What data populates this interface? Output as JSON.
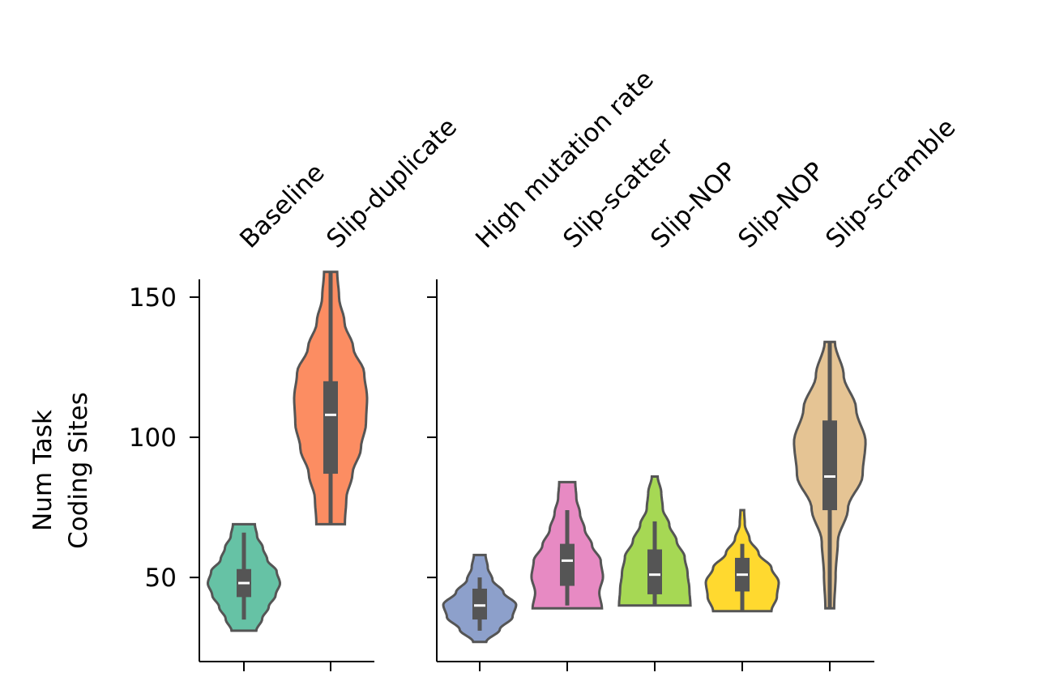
{
  "chart_data": {
    "type": "violin",
    "ylabel_lines": [
      "Num Task",
      "Coding Sites"
    ],
    "ylim": [
      20,
      165
    ],
    "yticks": [
      50,
      100,
      150
    ],
    "box_color": "#555555",
    "median_color": "#ffffff",
    "panels": [
      {
        "categories": [
          {
            "name": "Baseline",
            "color": "#66c2a5",
            "min": 31,
            "max": 69,
            "q1": 43,
            "median": 48,
            "q3": 53,
            "whisker_low": 35,
            "whisker_high": 66,
            "density": [
              0.34,
              0.5,
              0.68,
              0.87,
              0.99,
              0.9,
              0.64,
              0.52,
              0.36,
              0.3
            ]
          },
          {
            "name": "Slip-duplicate",
            "color": "#fc8d62",
            "min": 69,
            "max": 159,
            "q1": 87,
            "median": 108,
            "q3": 120,
            "whisker_low": 69,
            "whisker_high": 159,
            "density": [
              0.39,
              0.43,
              0.6,
              0.83,
              0.97,
              1.0,
              0.92,
              0.62,
              0.38,
              0.23,
              0.18
            ]
          }
        ]
      },
      {
        "categories": [
          {
            "name": "High mutation rate",
            "color": "#8da0cb",
            "min": 27,
            "max": 58,
            "q1": 35,
            "median": 40,
            "q3": 46,
            "whisker_low": 31,
            "whisker_high": 50,
            "density": [
              0.18,
              0.55,
              0.9,
              1.0,
              0.65,
              0.35,
              0.22,
              0.16
            ]
          },
          {
            "name": "Slip-scatter",
            "color": "#e78ac3",
            "min": 39,
            "max": 84,
            "q1": 47,
            "median": 56,
            "q3": 62,
            "whisker_low": 40,
            "whisker_high": 74,
            "density": [
              0.95,
              0.88,
              0.98,
              0.92,
              0.68,
              0.48,
              0.35,
              0.25,
              0.22
            ]
          },
          {
            "name": "Slip-NOP",
            "color": "#a6d854",
            "min": 40,
            "max": 86,
            "q1": 44,
            "median": 51,
            "q3": 60,
            "whisker_low": 40,
            "whisker_high": 70,
            "density": [
              0.98,
              0.95,
              0.9,
              0.82,
              0.6,
              0.4,
              0.22,
              0.18,
              0.08
            ]
          },
          {
            "name": "Slip-NOP",
            "color": "#ffd92f",
            "min": 38,
            "max": 74,
            "q1": 45,
            "median": 51,
            "q3": 57,
            "whisker_low": 38,
            "whisker_high": 62,
            "density": [
              0.8,
              0.95,
              1.0,
              0.8,
              0.45,
              0.2,
              0.07,
              0.05
            ]
          },
          {
            "name": "Slip-scramble",
            "color": "#e5c494",
            "min": 39,
            "max": 134,
            "q1": 74,
            "median": 86,
            "q3": 106,
            "whisker_low": 39,
            "whisker_high": 134,
            "density": [
              0.12,
              0.16,
              0.22,
              0.5,
              0.9,
              0.98,
              0.72,
              0.38,
              0.14
            ]
          }
        ]
      }
    ]
  }
}
